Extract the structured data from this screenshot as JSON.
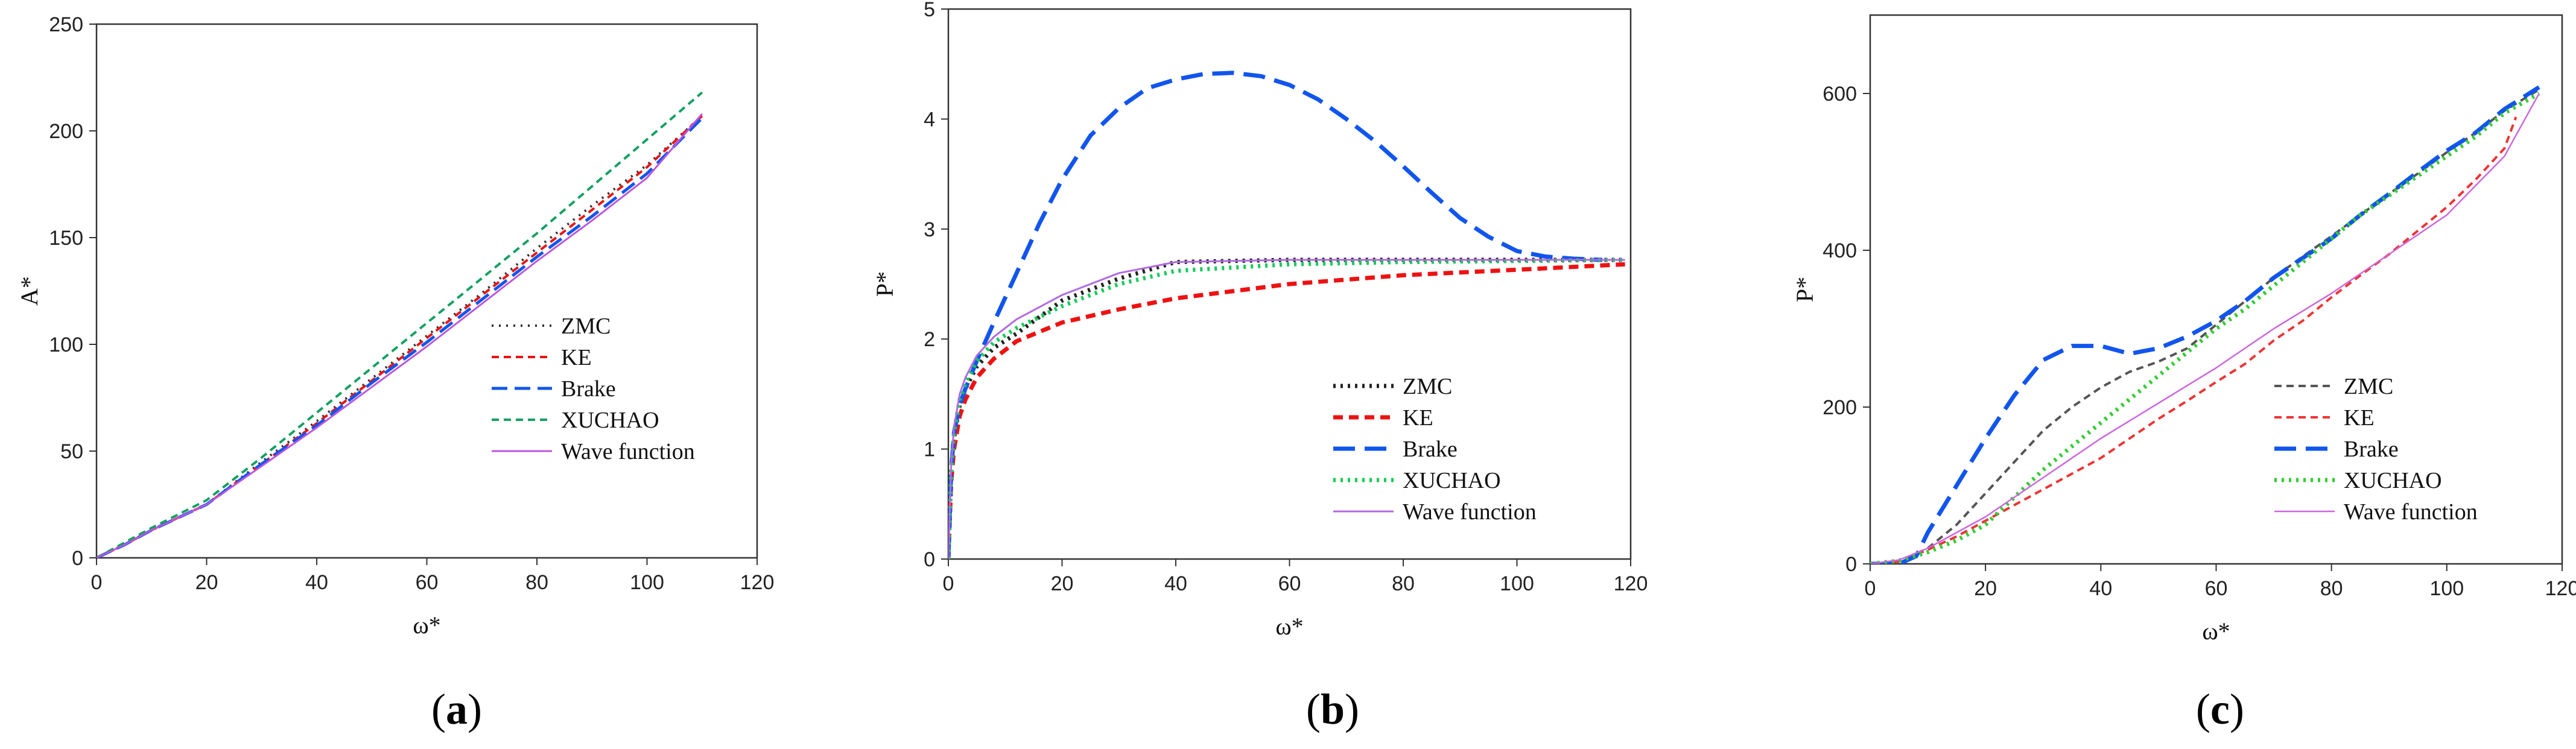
{
  "figure": {
    "panels": [
      "(a)",
      "(b)",
      "(c)"
    ]
  },
  "chart_data": [
    {
      "panel": "(a)",
      "panel_label_letter": "a",
      "type": "line",
      "title": "",
      "xlabel": "ω*",
      "ylabel": "A*",
      "ylabel_base": "A",
      "xlim": [
        0,
        120
      ],
      "ylim": [
        0,
        250
      ],
      "xticks": [
        0,
        20,
        40,
        60,
        80,
        100,
        120
      ],
      "yticks": [
        0,
        50,
        100,
        150,
        200,
        250
      ],
      "grid": false,
      "legend_position": "lower-right",
      "series": [
        {
          "name": "ZMC",
          "color": "#333333",
          "style": "dotted",
          "x": [
            0,
            5,
            10,
            20,
            30,
            40,
            50,
            60,
            70,
            80,
            90,
            100,
            110
          ],
          "y": [
            0,
            6,
            13,
            25,
            45,
            64,
            84,
            104,
            124,
            145,
            165,
            184,
            207
          ]
        },
        {
          "name": "KE",
          "color": "#ee1111",
          "style": "dashed-short",
          "x": [
            0,
            5,
            10,
            20,
            30,
            40,
            50,
            60,
            70,
            80,
            90,
            100,
            110
          ],
          "y": [
            0,
            6,
            13,
            25,
            44,
            63,
            83,
            103,
            123,
            143,
            163,
            183,
            207
          ]
        },
        {
          "name": "Brake",
          "color": "#1155ee",
          "style": "dashed-long",
          "x": [
            0,
            5,
            10,
            20,
            30,
            40,
            50,
            60,
            70,
            80,
            90,
            100,
            110
          ],
          "y": [
            0,
            6,
            13,
            25,
            44,
            62,
            82,
            101,
            121,
            141,
            160,
            180,
            206
          ]
        },
        {
          "name": "XUCHAO",
          "color": "#11a060",
          "style": "dashed-short",
          "x": [
            0,
            5,
            10,
            20,
            30,
            40,
            50,
            60,
            70,
            80,
            90,
            100,
            110
          ],
          "y": [
            0,
            7,
            14,
            27,
            47,
            68,
            89,
            110,
            131,
            152,
            174,
            196,
            218
          ]
        },
        {
          "name": "Wave function",
          "color": "#bb55dd",
          "style": "solid",
          "x": [
            0,
            5,
            10,
            20,
            30,
            40,
            50,
            60,
            70,
            80,
            90,
            100,
            110
          ],
          "y": [
            0,
            6,
            13,
            25,
            43,
            61,
            80,
            99,
            119,
            139,
            158,
            178,
            208
          ]
        }
      ]
    },
    {
      "panel": "(b)",
      "panel_label_letter": "b",
      "type": "line",
      "title": "",
      "xlabel": "ω*",
      "ylabel": "P*",
      "ylabel_base": "P",
      "xlim": [
        0,
        120
      ],
      "ylim": [
        0,
        5
      ],
      "xticks": [
        0,
        20,
        40,
        60,
        80,
        100,
        120
      ],
      "yticks": [
        0,
        1,
        2,
        3,
        4,
        5
      ],
      "grid": false,
      "legend_position": "lower-right",
      "series": [
        {
          "name": "ZMC",
          "color": "#222222",
          "style": "dotted-bold",
          "x": [
            0,
            0.5,
            1,
            2,
            3,
            5,
            8,
            12,
            20,
            30,
            40,
            60,
            80,
            100,
            119
          ],
          "y": [
            0,
            0.8,
            1.1,
            1.4,
            1.55,
            1.75,
            1.92,
            2.05,
            2.35,
            2.55,
            2.7,
            2.72,
            2.72,
            2.72,
            2.72
          ]
        },
        {
          "name": "KE",
          "color": "#ee1111",
          "style": "dashed-short-bold",
          "x": [
            0,
            0.5,
            1,
            2,
            3,
            5,
            8,
            12,
            20,
            30,
            40,
            60,
            80,
            100,
            119
          ],
          "y": [
            0,
            0.7,
            1.0,
            1.3,
            1.45,
            1.65,
            1.82,
            1.98,
            2.15,
            2.27,
            2.37,
            2.5,
            2.58,
            2.63,
            2.68
          ]
        },
        {
          "name": "Brake",
          "color": "#1155ee",
          "style": "dashed-long-bold",
          "x": [
            0,
            0.5,
            1,
            2,
            3,
            5,
            8,
            12,
            16,
            20,
            25,
            30,
            35,
            40,
            45,
            50,
            55,
            60,
            65,
            70,
            75,
            80,
            85,
            90,
            95,
            100,
            105,
            110,
            115
          ],
          "y": [
            0,
            0.8,
            1.15,
            1.4,
            1.55,
            1.8,
            2.15,
            2.6,
            3.05,
            3.45,
            3.85,
            4.1,
            4.28,
            4.36,
            4.41,
            4.42,
            4.39,
            4.31,
            4.18,
            4.0,
            3.8,
            3.57,
            3.33,
            3.1,
            2.93,
            2.8,
            2.75,
            2.73,
            2.72
          ]
        },
        {
          "name": "XUCHAO",
          "color": "#11cc55",
          "style": "dotted-bold",
          "x": [
            0,
            0.5,
            1,
            2,
            3,
            5,
            8,
            12,
            20,
            30,
            40,
            60,
            80,
            100,
            119
          ],
          "y": [
            0,
            0.8,
            1.15,
            1.45,
            1.6,
            1.8,
            1.97,
            2.1,
            2.3,
            2.5,
            2.62,
            2.68,
            2.7,
            2.71,
            2.72
          ]
        },
        {
          "name": "Wave function",
          "color": "#b06ae0",
          "style": "solid",
          "x": [
            0,
            0.5,
            1,
            2,
            3,
            5,
            8,
            12,
            20,
            30,
            40,
            60,
            80,
            100,
            119
          ],
          "y": [
            0,
            0.85,
            1.2,
            1.5,
            1.65,
            1.85,
            2.02,
            2.18,
            2.4,
            2.6,
            2.7,
            2.72,
            2.72,
            2.72,
            2.72
          ]
        }
      ]
    },
    {
      "panel": "(c)",
      "panel_label_letter": "c",
      "type": "line",
      "title": "",
      "xlabel": "ω*",
      "ylabel": "P*",
      "ylabel_base": "P",
      "xlim": [
        0,
        120
      ],
      "ylim": [
        0,
        700
      ],
      "xticks": [
        0,
        20,
        40,
        60,
        80,
        100,
        120
      ],
      "yticks": [
        0,
        200,
        400,
        600
      ],
      "grid": false,
      "legend_position": "lower-right",
      "series": [
        {
          "name": "ZMC",
          "color": "#555555",
          "style": "dashed-short",
          "x": [
            0,
            5,
            10,
            15,
            20,
            25,
            30,
            35,
            40,
            45,
            50,
            55,
            60,
            65,
            70,
            75,
            80,
            85,
            90,
            95,
            100,
            105,
            110,
            116
          ],
          "y": [
            0,
            3,
            20,
            50,
            90,
            130,
            170,
            200,
            225,
            245,
            258,
            275,
            305,
            335,
            365,
            392,
            418,
            445,
            472,
            498,
            525,
            550,
            578,
            605
          ]
        },
        {
          "name": "KE",
          "color": "#ee3333",
          "style": "dashed-short",
          "x": [
            0,
            5,
            10,
            15,
            20,
            25,
            30,
            35,
            40,
            45,
            50,
            55,
            60,
            65,
            70,
            75,
            80,
            85,
            90,
            95,
            100,
            105,
            110,
            112
          ],
          "y": [
            0,
            3,
            18,
            35,
            55,
            75,
            95,
            115,
            135,
            160,
            185,
            208,
            232,
            255,
            285,
            310,
            340,
            368,
            395,
            425,
            455,
            490,
            530,
            570
          ]
        },
        {
          "name": "Brake",
          "color": "#1155ee",
          "style": "dashed-long-bold",
          "x": [
            0,
            5,
            8,
            10,
            15,
            20,
            25,
            30,
            35,
            40,
            45,
            50,
            55,
            60,
            65,
            70,
            75,
            80,
            85,
            90,
            95,
            100,
            105,
            110,
            116
          ],
          "y": [
            0,
            0,
            10,
            40,
            100,
            160,
            215,
            260,
            278,
            278,
            268,
            275,
            290,
            310,
            335,
            365,
            390,
            415,
            445,
            472,
            500,
            527,
            550,
            580,
            608
          ]
        },
        {
          "name": "XUCHAO",
          "color": "#33cc33",
          "style": "dotted-bold",
          "x": [
            0,
            5,
            10,
            15,
            20,
            25,
            30,
            35,
            40,
            45,
            50,
            55,
            60,
            65,
            70,
            75,
            80,
            85,
            90,
            95,
            100,
            105,
            110,
            116
          ],
          "y": [
            0,
            4,
            15,
            30,
            50,
            85,
            120,
            150,
            180,
            210,
            240,
            270,
            300,
            325,
            355,
            385,
            415,
            445,
            470,
            495,
            520,
            545,
            575,
            600
          ]
        },
        {
          "name": "Wave function",
          "color": "#cc66dd",
          "style": "solid-thin",
          "x": [
            0,
            5,
            10,
            15,
            20,
            30,
            40,
            50,
            60,
            70,
            80,
            90,
            100,
            110,
            116
          ],
          "y": [
            0,
            5,
            20,
            40,
            60,
            110,
            160,
            205,
            250,
            300,
            345,
            395,
            445,
            520,
            600
          ]
        }
      ]
    }
  ]
}
